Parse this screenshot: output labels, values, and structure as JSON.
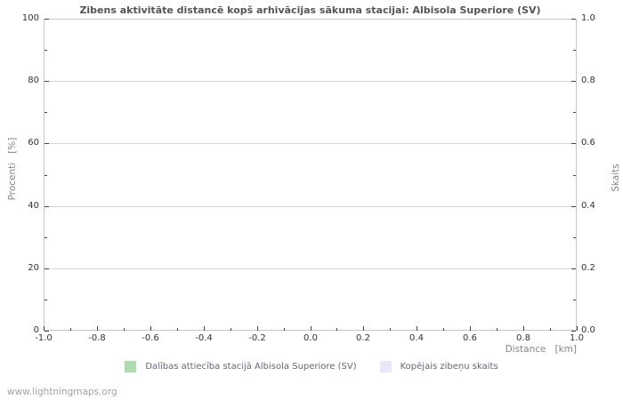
{
  "page": {
    "footer_link": "www.lightningmaps.org"
  },
  "chart_data": {
    "type": "bar",
    "title": "Zibens aktivitāte distancē kopš arhivācijas sākuma stacijai: Albisola Superiore (SV)",
    "xlabel": "Distance   [km]",
    "ylabel_left": "Procenti   [%]",
    "ylabel_right": "Skaits",
    "xlim": [
      -1.0,
      1.0
    ],
    "ylim_left": [
      0,
      100
    ],
    "ylim_right": [
      0.0,
      1.0
    ],
    "x_ticks": [
      -1.0,
      -0.8,
      -0.6,
      -0.4,
      -0.2,
      0.0,
      0.2,
      0.4,
      0.6,
      0.8,
      1.0
    ],
    "y_ticks_left": [
      0,
      20,
      40,
      60,
      80,
      100
    ],
    "y_ticks_right": [
      0.0,
      0.2,
      0.4,
      0.6,
      0.8,
      1.0
    ],
    "grid": "horizontal-only",
    "legend_position": "bottom-center",
    "series": [
      {
        "name": "Dalības attiecība stacijā Albisola Superiore (SV)",
        "color": "#afdcaf",
        "axis": "left",
        "values": []
      },
      {
        "name": "Kopējais zibeņu skaits",
        "color": "#e8e8fa",
        "axis": "right",
        "values": []
      }
    ],
    "colors": {
      "title": "#555555",
      "axis_label": "#878787",
      "tick_label": "#333333",
      "gridline": "#d4d4d4",
      "plot_border": "#c6c6c6",
      "tick_mark": "#444444"
    }
  }
}
